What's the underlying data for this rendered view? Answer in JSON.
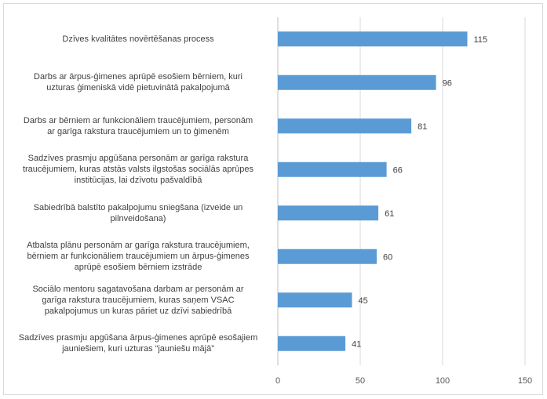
{
  "chart_data": {
    "type": "bar",
    "orientation": "horizontal",
    "categories": [
      [
        "Dzīves kvalitātes novērtēšanas process"
      ],
      [
        "Darbs ar ārpus-ģimenes aprūpē esošiem bērniem, kuri",
        "uzturas ģimeniskā vidē pietuvinātā pakalpojumā"
      ],
      [
        "Darbs ar bērniem ar funkcionāliem traucējumiem, personām",
        "ar garīga rakstura traucējumiem un to ģimenēm"
      ],
      [
        "Sadzīves prasmju apgūšana personām ar garīga rakstura",
        "traucējumiem, kuras atstās valsts ilgstošas sociālās aprūpes",
        "institūcijas, lai dzīvotu pašvaldībā"
      ],
      [
        "Sabiedrībā balstīto pakalpojumu sniegšana (izveide un",
        "pilnveidošana)"
      ],
      [
        "Atbalsta plānu personām ar garīga rakstura traucējumiem,",
        "bērniem ar funkcionāliem traucējumiem un ārpus-ģimenes",
        "aprūpē esošiem bērniem izstrāde"
      ],
      [
        "Sociālo mentoru sagatavošana darbam ar personām ar",
        "garīga rakstura traucējumiem, kuras saņem VSAC",
        "pakalpojumus un kuras pāriet uz dzīvi sabiedrībā"
      ],
      [
        "Sadzīves prasmju apgūšana ārpus-ģimenes aprūpē esošajiem",
        "jauniešiem, kuri uzturas “jauniešu mājā”"
      ]
    ],
    "values": [
      115,
      96,
      81,
      66,
      61,
      60,
      45,
      41
    ],
    "xlim": [
      0,
      150
    ],
    "xticks": [
      "0",
      "50",
      "100",
      "150"
    ],
    "grid": true,
    "data_labels": true,
    "bar_color": "#5b9bd5",
    "title": "",
    "xlabel": "",
    "ylabel": ""
  }
}
